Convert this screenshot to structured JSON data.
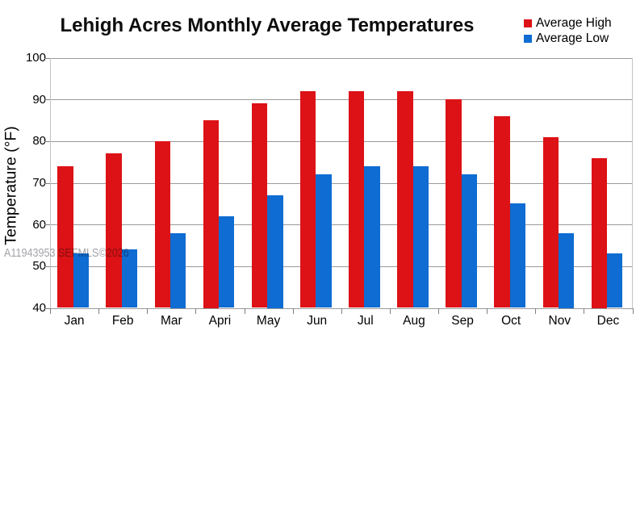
{
  "watermark": "A11943953 SEFMLS©2026",
  "chart_data": {
    "type": "bar",
    "title": "Lehigh Acres Monthly Average Temperatures",
    "categories": [
      "Jan",
      "Feb",
      "Mar",
      "Apri",
      "May",
      "Jun",
      "Jul",
      "Aug",
      "Sep",
      "Oct",
      "Nov",
      "Dec"
    ],
    "series": [
      {
        "name": "Average High",
        "color": "#dc1216",
        "values": [
          74,
          77,
          80,
          85,
          89,
          92,
          92,
          92,
          90,
          86,
          81,
          76
        ]
      },
      {
        "name": "Average Low",
        "color": "#0e6cd2",
        "values": [
          53,
          54,
          58,
          62,
          67,
          72,
          74,
          74,
          72,
          65,
          58,
          53
        ]
      }
    ],
    "xlabel": "",
    "ylabel": "Temperature (°F)",
    "ylim": [
      40,
      100
    ],
    "ytick_step": 10,
    "grid": true,
    "legend_position": "top-right",
    "colors": {
      "gridline": "#9a9a9a",
      "plot_border": "#c3c3c3",
      "tick": "#7f7f7f",
      "watermark_gray": "#6e6e74"
    }
  }
}
